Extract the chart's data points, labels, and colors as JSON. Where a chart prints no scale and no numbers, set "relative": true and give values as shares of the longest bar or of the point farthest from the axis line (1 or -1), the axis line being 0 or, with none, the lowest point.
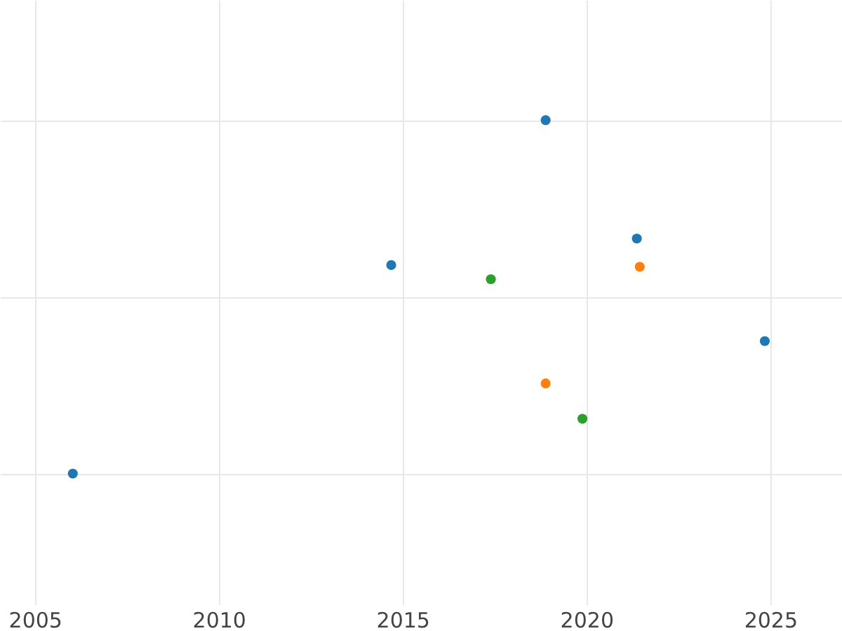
{
  "chart_data": {
    "type": "scatter",
    "relative": true,
    "xlim": [
      2004.05,
      2026.95
    ],
    "xticks": [
      2005,
      2010,
      2015,
      2020,
      2025
    ],
    "grid": true,
    "legend": false,
    "marker": "circle",
    "series": [
      {
        "color": "#1f77b4",
        "x": [
          2006.03,
          2014.69,
          2018.89,
          2021.37,
          2024.85
        ],
        "values": [
          0,
          0.59,
          1,
          0.665,
          0.375
        ]
      },
      {
        "color": "#ff7f0e",
        "x": [
          2018.89,
          2021.45
        ],
        "values": [
          0.255,
          0.585
        ]
      },
      {
        "color": "#2ca02c",
        "x": [
          2017.4,
          2019.89
        ],
        "values": [
          0.55,
          0.155
        ]
      }
    ]
  }
}
